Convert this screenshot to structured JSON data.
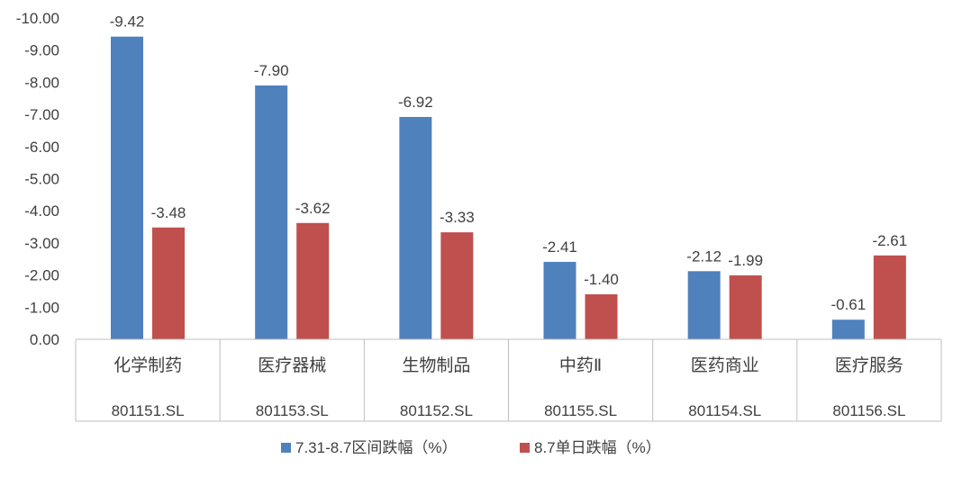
{
  "chart_data": {
    "type": "bar",
    "title": "",
    "xlabel": "",
    "ylabel": "",
    "categories": [
      {
        "name": "化学制药",
        "code": "801151.SL"
      },
      {
        "name": "医疗器械",
        "code": "801153.SL"
      },
      {
        "name": "生物制品",
        "code": "801152.SL"
      },
      {
        "name": "中药Ⅱ",
        "code": "801155.SL"
      },
      {
        "name": "医药商业",
        "code": "801154.SL"
      },
      {
        "name": "医疗服务",
        "code": "801156.SL"
      }
    ],
    "series": [
      {
        "name": "7.31-8.7区间跌幅（%）",
        "color": "#4F81BD",
        "values": [
          -9.42,
          -7.9,
          -6.92,
          -2.41,
          -2.12,
          -0.61
        ],
        "labels": [
          "-9.42",
          "-7.90",
          "-6.92",
          "-2.41",
          "-2.12",
          "-0.61"
        ]
      },
      {
        "name": "8.7单日跌幅（%）",
        "color": "#C0504D",
        "values": [
          -3.48,
          -3.62,
          -3.33,
          -1.4,
          -1.99,
          -2.61
        ],
        "labels": [
          "-3.48",
          "-3.62",
          "-3.33",
          "-1.40",
          "-1.99",
          "-2.61"
        ]
      }
    ],
    "ylim": [
      0,
      -10
    ],
    "y_reversed": true,
    "yticks": [
      "0.00",
      "-1.00",
      "-2.00",
      "-3.00",
      "-4.00",
      "-5.00",
      "-6.00",
      "-7.00",
      "-8.00",
      "-9.00",
      "-10.00"
    ],
    "grid": false,
    "legend_position": "bottom"
  }
}
